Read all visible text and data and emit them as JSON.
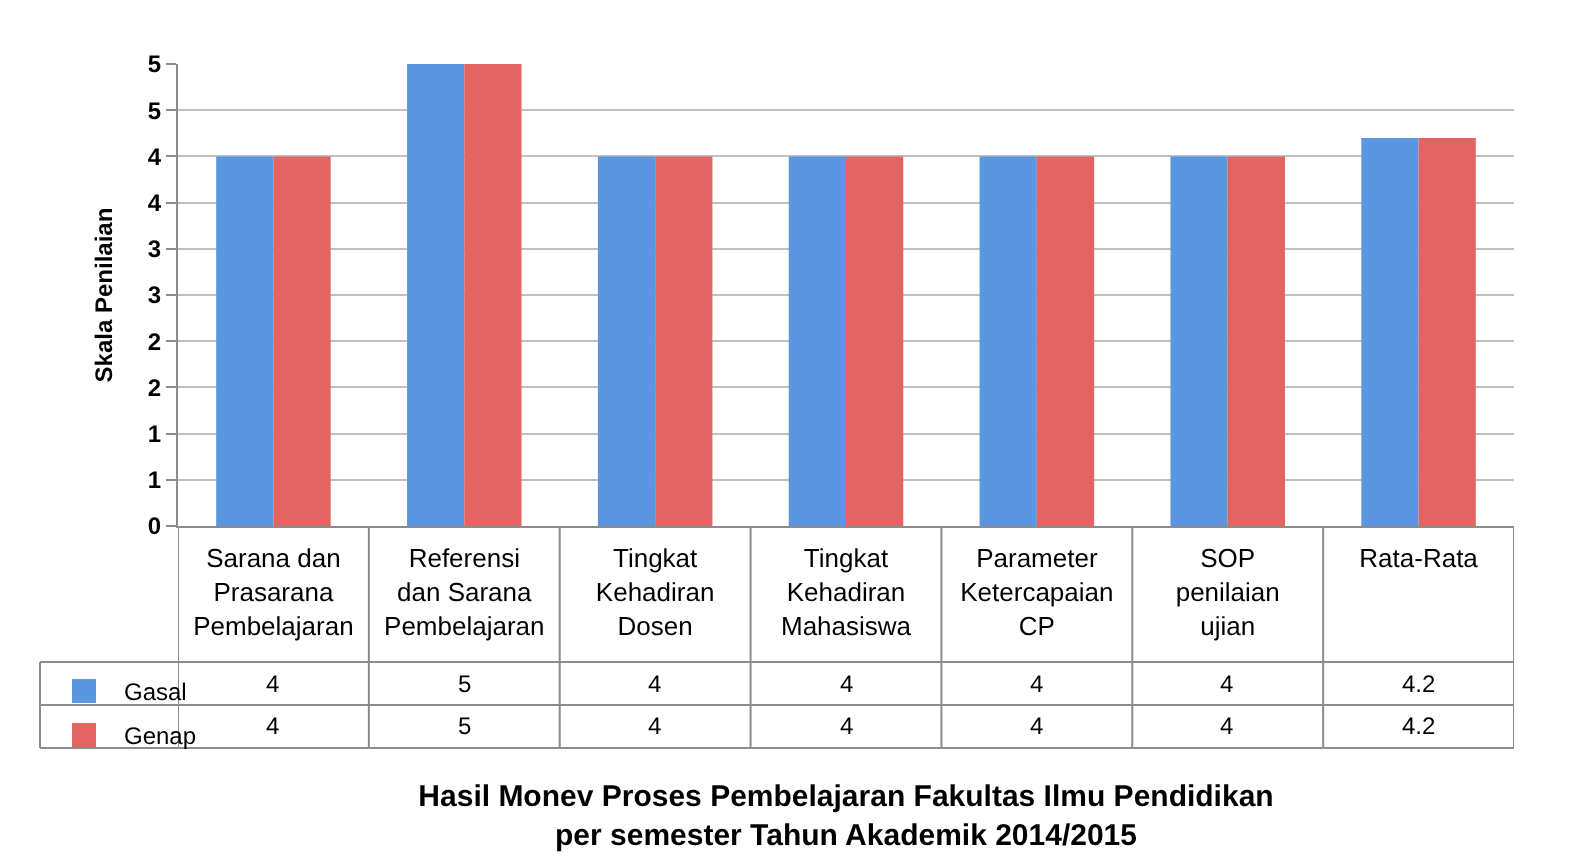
{
  "chart_data": {
    "type": "bar",
    "title": "Hasil Monev Proses Pembelajaran Fakultas Ilmu Pendidikan\nper semester Tahun Akademik 2014/2015",
    "ylabel": "Skala Penilaian",
    "categories": [
      "Sarana dan Prasarana Pembelajaran",
      "Referensi dan Sarana Pembelajaran",
      "Tingkat Kehadiran Dosen",
      "Tingkat Kehadiran Mahasiswa",
      "Parameter Ketercapaian CP",
      "SOP penilaian ujian",
      "Rata-Rata"
    ],
    "series": [
      {
        "name": "Gasal",
        "color": "#5b97e0",
        "values": [
          4,
          5,
          4,
          4,
          4,
          4,
          4.2
        ]
      },
      {
        "name": "Genap",
        "color": "#e46462",
        "values": [
          4,
          5,
          4,
          4,
          4,
          4,
          4.2
        ]
      }
    ],
    "ylim": [
      0,
      5
    ],
    "yticks": [
      0,
      {
        "value": 0.5,
        "label": "1"
      },
      1,
      {
        "value": 1.5,
        "label": "2"
      },
      2,
      {
        "value": 2.5,
        "label": "3"
      },
      3,
      {
        "value": 3.5,
        "label": "4"
      },
      4,
      {
        "value": 4.5,
        "label": "5"
      },
      5
    ],
    "grid": "y",
    "legend": "bottom left",
    "data_labels": true
  }
}
